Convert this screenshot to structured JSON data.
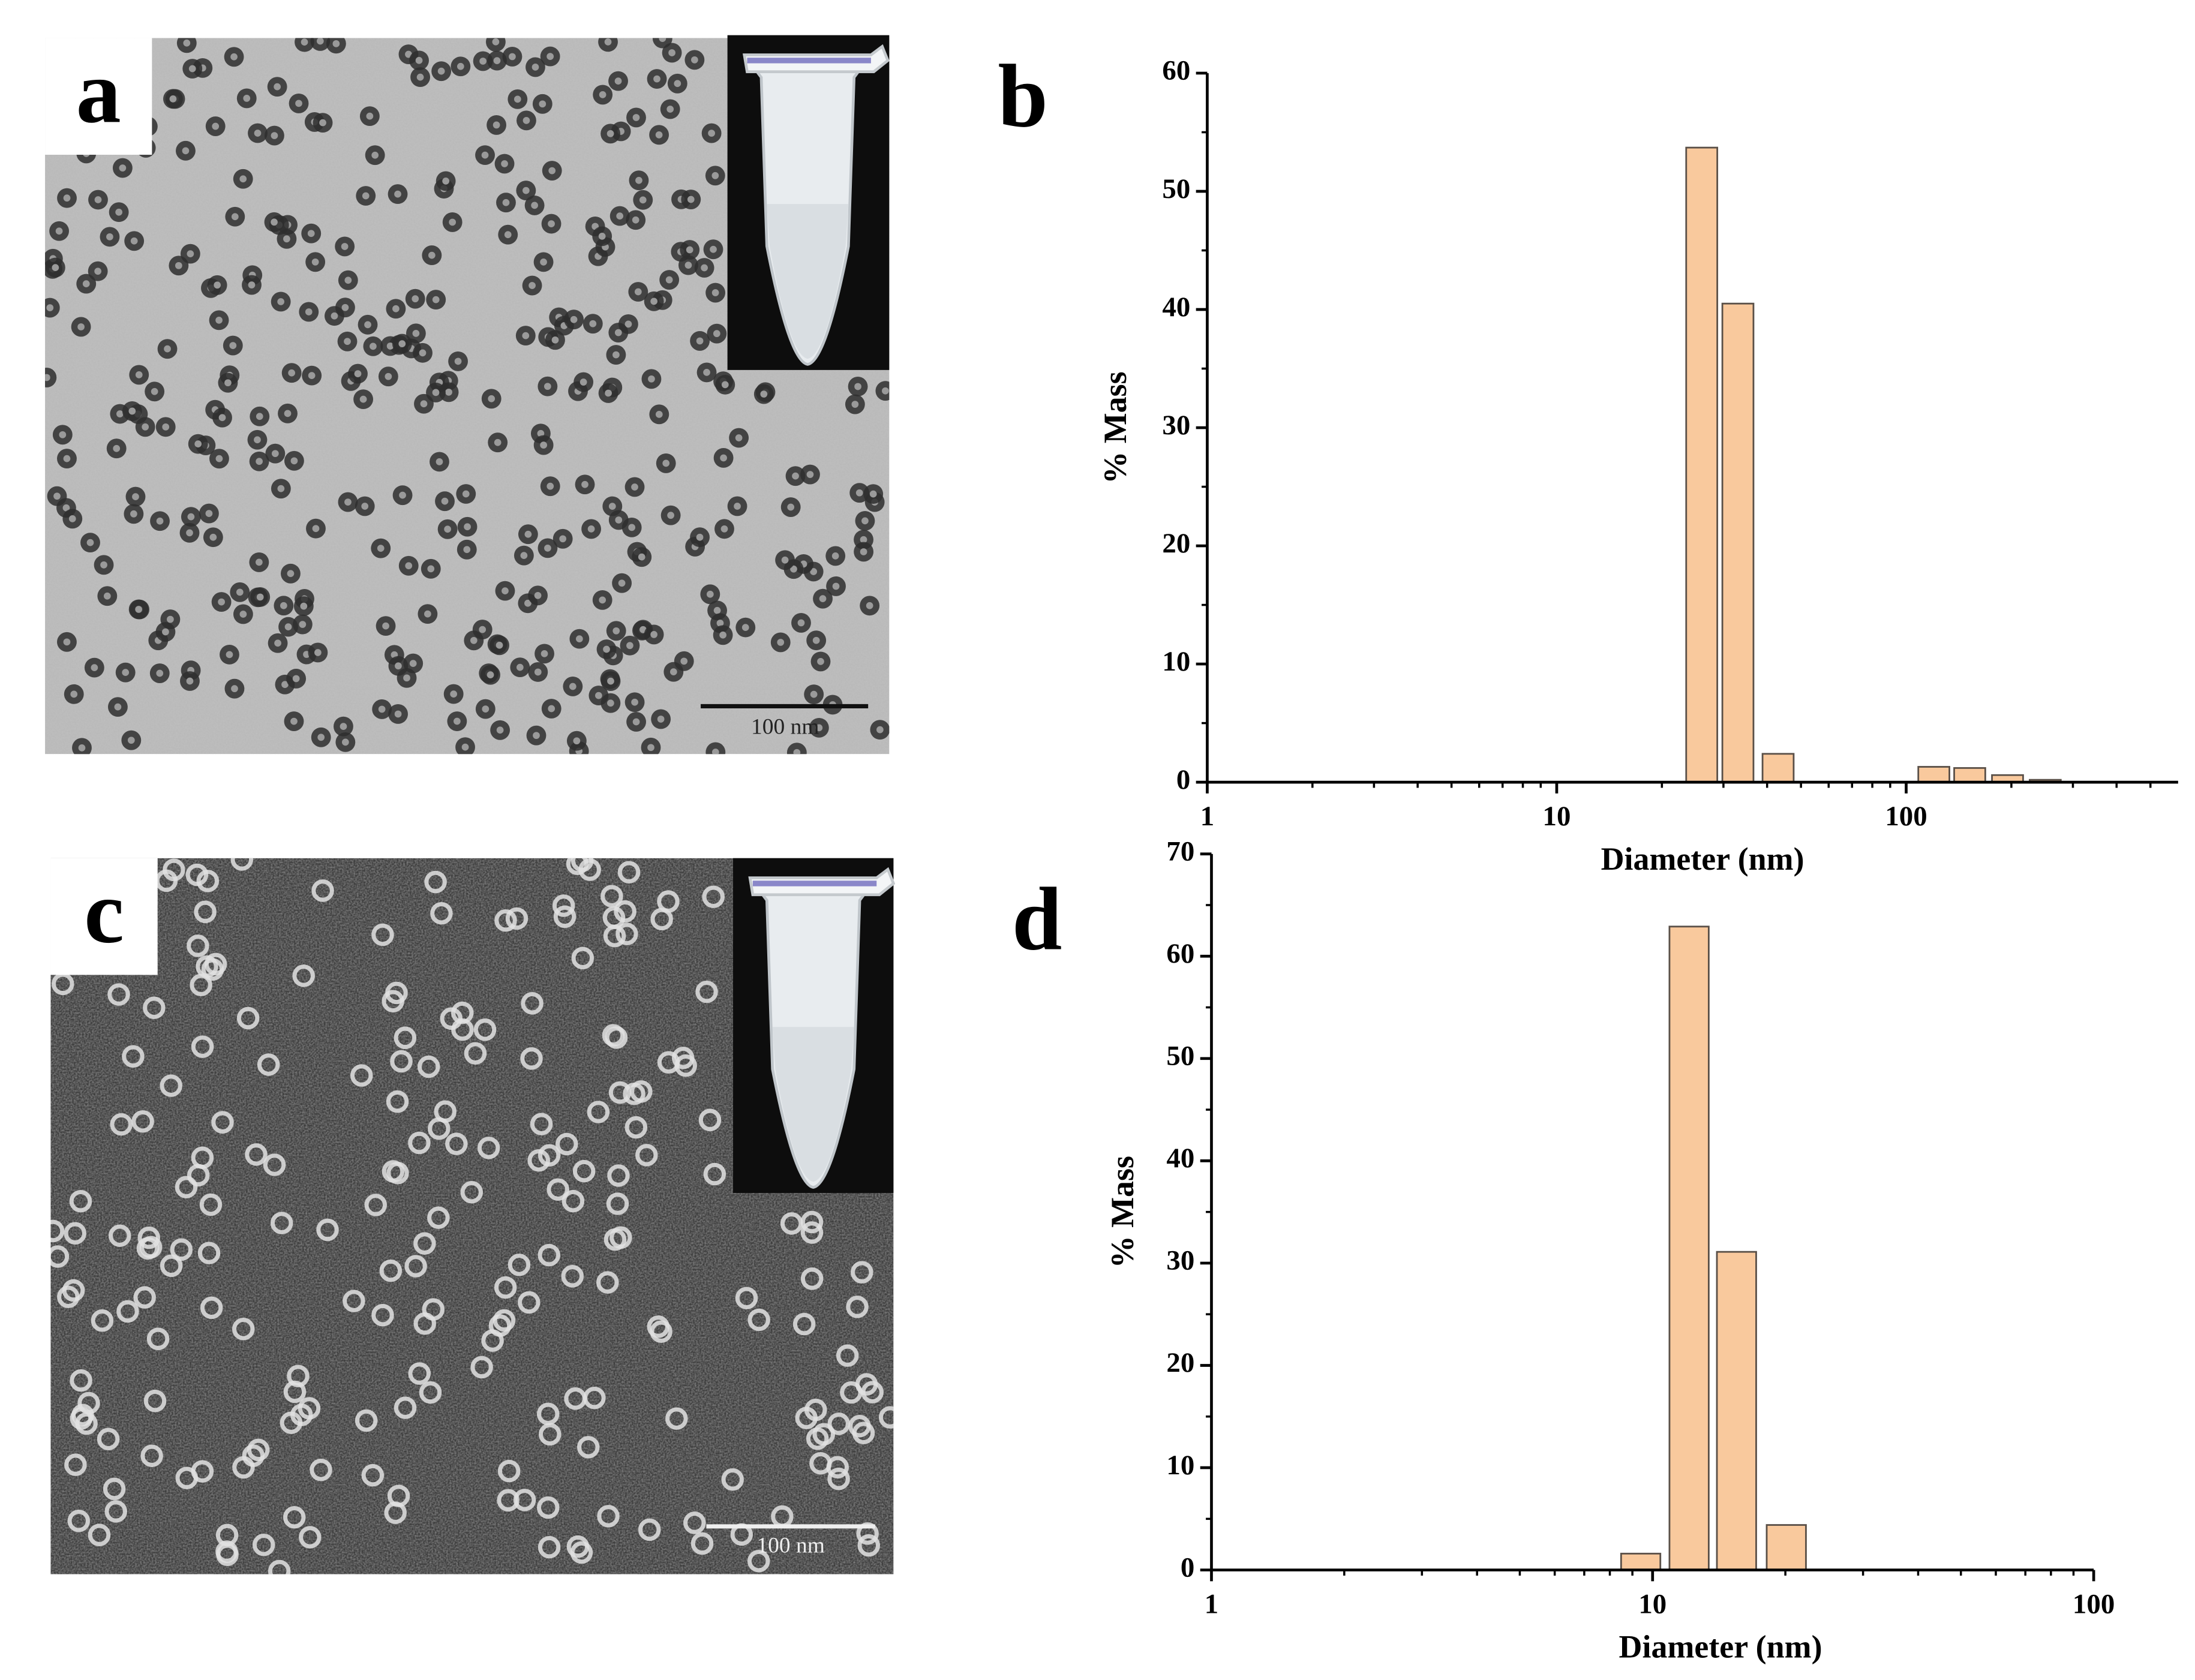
{
  "images": [
    {
      "panel_label": "a",
      "scale_bar_label": "100 nm"
    },
    {
      "panel_label": "c",
      "scale_bar_label": "100 nm"
    }
  ],
  "chart_data": [
    {
      "type": "bar",
      "panel_label": "b",
      "xlabel": "Diameter (nm)",
      "ylabel": "% Mass",
      "x": [
        26,
        33,
        43,
        120,
        152,
        195,
        250
      ],
      "values": [
        53.7,
        40.5,
        2.4,
        1.3,
        1.2,
        0.6,
        0.2
      ],
      "color": "#f9c99d",
      "xscale": "log",
      "xlim": [
        1,
        600
      ],
      "xticks": [
        1,
        10,
        100
      ],
      "ylim": [
        0,
        60
      ],
      "yticks": [
        0,
        10,
        20,
        30,
        40,
        50,
        60
      ]
    },
    {
      "type": "bar",
      "panel_label": "d",
      "xlabel": "Diameter (nm)",
      "ylabel": "% Mass",
      "x": [
        9.4,
        12.1,
        15.5,
        20.1
      ],
      "values": [
        1.6,
        62.9,
        31.1,
        4.4
      ],
      "color": "#f9c99d",
      "xscale": "log",
      "xlim": [
        1,
        100
      ],
      "xticks": [
        1,
        10,
        100
      ],
      "ylim": [
        0,
        70
      ],
      "yticks": [
        0,
        10,
        20,
        30,
        40,
        50,
        60,
        70
      ]
    }
  ]
}
